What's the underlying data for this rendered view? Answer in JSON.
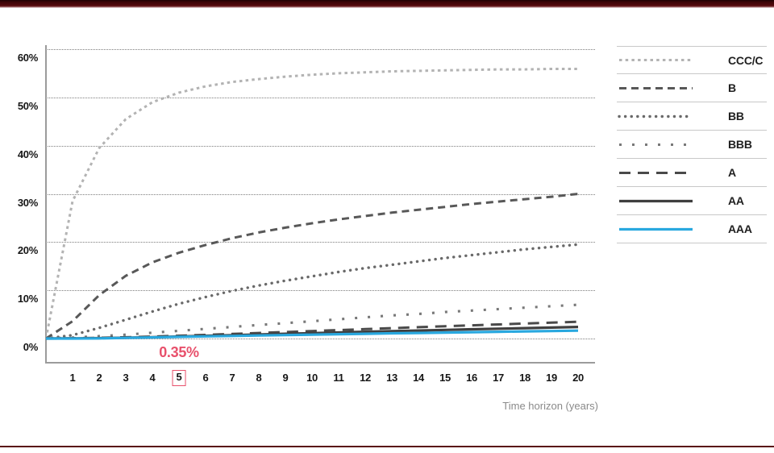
{
  "accent": {
    "top_bar_color": "#4c080b",
    "bottom_rule_color": "#5a1216",
    "highlight_color": "#e8506b"
  },
  "chart_data": {
    "type": "line",
    "title": "",
    "xlabel": "Time horizon (years)",
    "ylabel": "",
    "categories": [
      "1",
      "2",
      "3",
      "4",
      "5",
      "6",
      "7",
      "8",
      "9",
      "10",
      "11",
      "12",
      "13",
      "14",
      "15",
      "16",
      "17",
      "18",
      "19",
      "20"
    ],
    "highlighted_x_tick": "5",
    "annotation": {
      "text": "0.35%",
      "color": "#e8506b",
      "at_year": 5
    },
    "ylim": [
      0,
      60
    ],
    "ytick_labels": [
      "0%",
      "10%",
      "20%",
      "30%",
      "40%",
      "50%",
      "60%"
    ],
    "grid": "horizontal dotted gridlines at each 10%",
    "legend_position": "right",
    "curves_start_at_zero": true,
    "series": [
      {
        "name": "CCC/C",
        "color": "#b3b3b3",
        "line_style": "dense-dash",
        "values": [
          28.5,
          39.5,
          45.5,
          49.0,
          51.0,
          52.3,
          53.2,
          53.8,
          54.3,
          54.7,
          55.0,
          55.2,
          55.4,
          55.5,
          55.6,
          55.7,
          55.8,
          55.8,
          55.9,
          55.9
        ]
      },
      {
        "name": "B",
        "color": "#585858",
        "line_style": "dash",
        "values": [
          3.6,
          9.0,
          13.0,
          15.8,
          17.8,
          19.4,
          20.8,
          22.0,
          23.0,
          23.9,
          24.7,
          25.4,
          26.1,
          26.7,
          27.3,
          27.9,
          28.4,
          28.9,
          29.4,
          30.0
        ]
      },
      {
        "name": "BB",
        "color": "#696969",
        "line_style": "dot",
        "values": [
          0.7,
          2.2,
          3.9,
          5.6,
          7.2,
          8.6,
          9.9,
          11.0,
          12.0,
          12.9,
          13.8,
          14.6,
          15.3,
          16.0,
          16.7,
          17.3,
          17.9,
          18.5,
          19.0,
          19.5
        ]
      },
      {
        "name": "BBB",
        "color": "#787878",
        "line_style": "sparse-dot",
        "values": [
          0.2,
          0.5,
          0.8,
          1.2,
          1.6,
          2.0,
          2.4,
          2.8,
          3.2,
          3.6,
          4.0,
          4.4,
          4.8,
          5.1,
          5.5,
          5.8,
          6.1,
          6.4,
          6.7,
          7.0
        ]
      },
      {
        "name": "A",
        "color": "#4a4a4a",
        "line_style": "long-dash",
        "values": [
          0.06,
          0.15,
          0.27,
          0.42,
          0.58,
          0.76,
          0.95,
          1.15,
          1.35,
          1.55,
          1.75,
          1.95,
          2.15,
          2.35,
          2.55,
          2.74,
          2.93,
          3.12,
          3.3,
          3.48
        ]
      },
      {
        "name": "AA",
        "color": "#3f3f3f",
        "line_style": "solid",
        "values": [
          0.03,
          0.09,
          0.17,
          0.29,
          0.42,
          0.56,
          0.7,
          0.84,
          0.98,
          1.12,
          1.26,
          1.4,
          1.53,
          1.66,
          1.79,
          1.92,
          2.04,
          2.16,
          2.28,
          2.4
        ]
      },
      {
        "name": "AAA",
        "color": "#29a8df",
        "line_style": "solid",
        "values": [
          0.0,
          0.03,
          0.13,
          0.24,
          0.35,
          0.45,
          0.54,
          0.63,
          0.72,
          0.81,
          0.9,
          0.99,
          1.08,
          1.16,
          1.24,
          1.32,
          1.4,
          1.48,
          1.56,
          1.64
        ]
      }
    ]
  }
}
